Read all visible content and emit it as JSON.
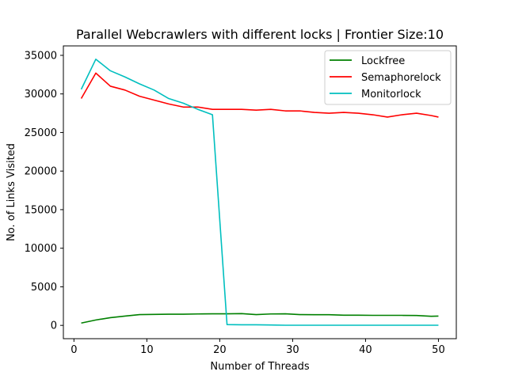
{
  "chart_data": {
    "type": "line",
    "title": "Parallel Webcrawlers with different locks | Frontier Size:10",
    "xlabel": "Number of Threads",
    "ylabel": "No. of Links Visited",
    "xlim": [
      -1.45,
      52.45
    ],
    "ylim": [
      -1725,
      36225
    ],
    "xticks": [
      0,
      10,
      20,
      30,
      40,
      50
    ],
    "yticks": [
      0,
      5000,
      10000,
      15000,
      20000,
      25000,
      30000,
      35000
    ],
    "grid": false,
    "legend_position": "upper right",
    "x": [
      1,
      3,
      5,
      7,
      9,
      11,
      13,
      15,
      17,
      19,
      21,
      23,
      25,
      27,
      29,
      31,
      33,
      35,
      37,
      39,
      41,
      43,
      45,
      47,
      49,
      50
    ],
    "series": [
      {
        "name": "Lockfree",
        "color": "#008000",
        "values": [
          300,
          700,
          1000,
          1200,
          1400,
          1420,
          1450,
          1450,
          1480,
          1500,
          1500,
          1520,
          1400,
          1480,
          1500,
          1400,
          1380,
          1380,
          1320,
          1320,
          1300,
          1300,
          1300,
          1280,
          1180,
          1200
        ]
      },
      {
        "name": "Semaphorelock",
        "color": "#ff0000",
        "values": [
          29400,
          32700,
          31000,
          30500,
          29700,
          29200,
          28700,
          28300,
          28300,
          28000,
          28000,
          28000,
          27900,
          28000,
          27800,
          27800,
          27600,
          27500,
          27600,
          27500,
          27300,
          27000,
          27300,
          27500,
          27200,
          27000
        ]
      },
      {
        "name": "Monitorlock",
        "color": "#00bfbf",
        "values": [
          30600,
          34500,
          33000,
          32200,
          31300,
          30500,
          29400,
          28800,
          28000,
          27300,
          100,
          80,
          80,
          50,
          20,
          20,
          20,
          20,
          20,
          20,
          20,
          20,
          20,
          20,
          20,
          20
        ]
      }
    ]
  }
}
